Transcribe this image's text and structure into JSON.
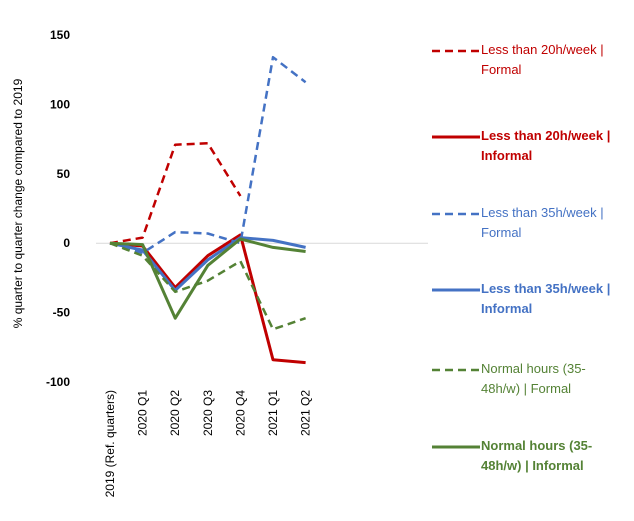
{
  "chart_data": {
    "type": "line",
    "ylabel": "% quarter to quarter change compared to 2019",
    "xlabel": "",
    "categories": [
      "2019 (Ref. quarters)",
      "2020 Q1",
      "2020 Q2",
      "2020 Q3",
      "2020 Q4",
      "2021 Q1",
      "2021 Q2"
    ],
    "ylim": [
      -100,
      150
    ],
    "yticks": [
      -100,
      -50,
      0,
      50,
      100,
      150
    ],
    "zero_line": true,
    "grid": false,
    "legend_position": "right",
    "series": [
      {
        "name": "Less than 20h/week | Formal",
        "color": "#C00000",
        "dash": true,
        "bold": false,
        "values": [
          0,
          4,
          71,
          72,
          34,
          null,
          null
        ]
      },
      {
        "name": "Less than 20h/week | Informal",
        "color": "#C00000",
        "dash": false,
        "bold": true,
        "values": [
          0,
          -2,
          -32,
          -9,
          6,
          -84,
          -86
        ]
      },
      {
        "name": "Less than 35h/week | Formal",
        "color": "#4472C4",
        "dash": true,
        "bold": false,
        "values": [
          0,
          -7,
          8,
          7,
          0,
          134,
          116
        ]
      },
      {
        "name": "Less than 35h/week | Informal",
        "color": "#4472C4",
        "dash": false,
        "bold": true,
        "values": [
          0,
          -5,
          -34,
          -12,
          4,
          2,
          -3
        ]
      },
      {
        "name": "Normal hours (35-48h/w) | Formal",
        "color": "#548235",
        "dash": true,
        "bold": false,
        "values": [
          0,
          -9,
          -35,
          -27,
          -13,
          -62,
          -54
        ]
      },
      {
        "name": "Normal hours (35-48h/w) | Informal",
        "color": "#548235",
        "dash": false,
        "bold": true,
        "values": [
          0,
          -1,
          -54,
          -16,
          3,
          -3,
          -6
        ]
      }
    ]
  },
  "legend": {
    "items": [
      {
        "lines": [
          "Less than 20h/week |",
          "Formal"
        ]
      },
      {
        "lines": [
          "Less than 20h/week |",
          "Informal"
        ]
      },
      {
        "lines": [
          "Less than 35h/week |",
          "Formal"
        ]
      },
      {
        "lines": [
          "Less than 35h/week |",
          "Informal"
        ]
      },
      {
        "lines": [
          "Normal hours (35-",
          "48h/w) | Formal"
        ]
      },
      {
        "lines": [
          "Normal hours (35-",
          "48h/w) | Informal"
        ]
      }
    ]
  }
}
